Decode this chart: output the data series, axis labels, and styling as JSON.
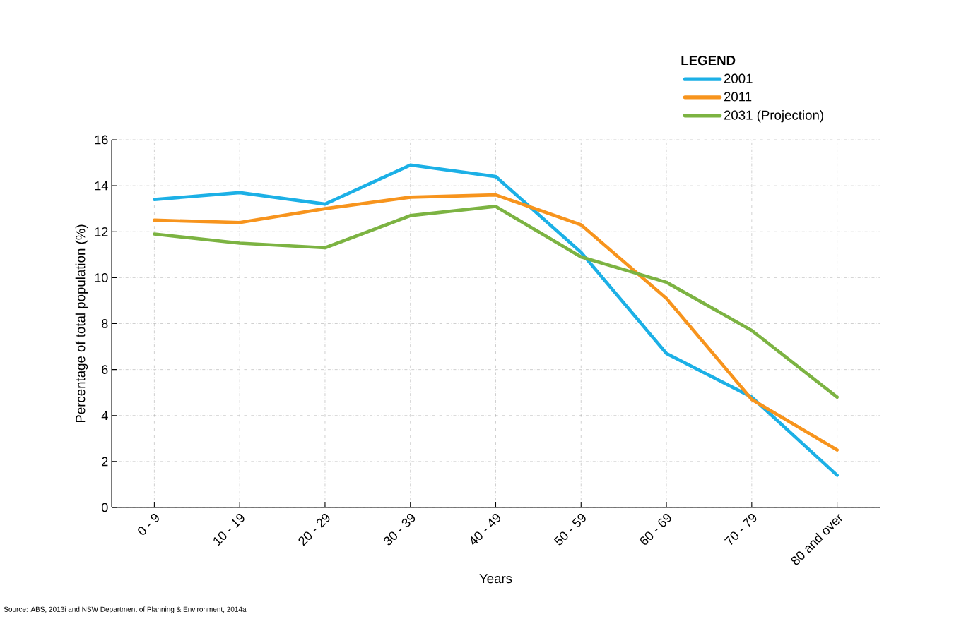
{
  "chart_data": {
    "type": "line",
    "xlabel": "Years",
    "ylabel": "Percentage of total population (%)",
    "legend_title": "LEGEND",
    "categories": [
      "0 - 9",
      "10 - 19",
      "20 - 29",
      "30 - 39",
      "40 - 49",
      "50 - 59",
      "60 - 69",
      "70 - 79",
      "80 and over"
    ],
    "series": [
      {
        "name": "2001",
        "color": "#1cb0e6",
        "values": [
          13.4,
          13.7,
          13.2,
          14.9,
          14.4,
          11.1,
          6.7,
          4.8,
          1.4
        ]
      },
      {
        "name": "2011",
        "color": "#f7941d",
        "values": [
          12.5,
          12.4,
          13.0,
          13.5,
          13.6,
          12.3,
          9.1,
          4.7,
          2.5
        ]
      },
      {
        "name": "2031 (Projection)",
        "color": "#7cb342",
        "values": [
          11.9,
          11.5,
          11.3,
          12.7,
          13.1,
          10.9,
          9.8,
          7.7,
          4.8
        ]
      }
    ],
    "ylim": [
      0,
      16
    ],
    "yticks": [
      0,
      2,
      4,
      6,
      8,
      10,
      12,
      14,
      16
    ],
    "grid": true,
    "legend": "top right",
    "marker": "none",
    "line_style": "solid",
    "annotations": [
      "Source: ABS, 2013i and NSW Department of Planning & Environment, 2014a"
    ]
  }
}
